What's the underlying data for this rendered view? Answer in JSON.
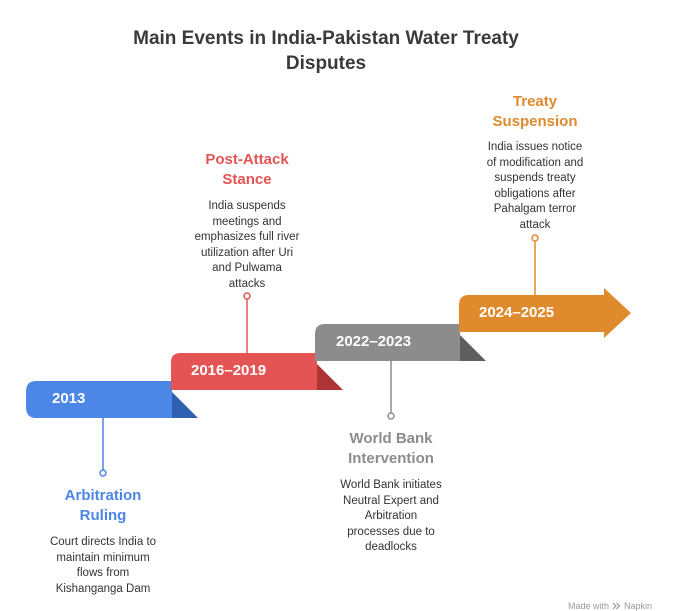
{
  "title": "Main Events in India-Pakistan Water Treaty\nDisputes",
  "steps": [
    {
      "period": "2013",
      "color": "#4c86e6",
      "fold_color": "#2f5fb0",
      "event_title": "Arbitration\nRuling",
      "event_desc": "Court directs India to\nmaintain minimum\nflows from\nKishanganga Dam"
    },
    {
      "period": "2016–2019",
      "color": "#e55454",
      "fold_color": "#ad3535",
      "event_title": "Post-Attack\nStance",
      "event_desc": "India suspends\nmeetings and\nemphasizes full river\nutilization after Uri\nand Pulwama\nattacks"
    },
    {
      "period": "2022–2023",
      "color": "#8c8c8c",
      "fold_color": "#5e5e5e",
      "event_title": "World Bank\nIntervention",
      "event_desc": "World Bank initiates\nNeutral Expert and\nArbitration\nprocesses due to\ndeadlocks"
    },
    {
      "period": "2024–2025",
      "color": "#e08a2e",
      "fold_color": "#b06218",
      "event_title": "Treaty\nSuspension",
      "event_desc": "India issues notice\nof modification and\nsuspends treaty\nobligations after\nPahalgam terror\nattack"
    }
  ],
  "footer": {
    "made_with": "Made with",
    "brand": "Napkin"
  }
}
